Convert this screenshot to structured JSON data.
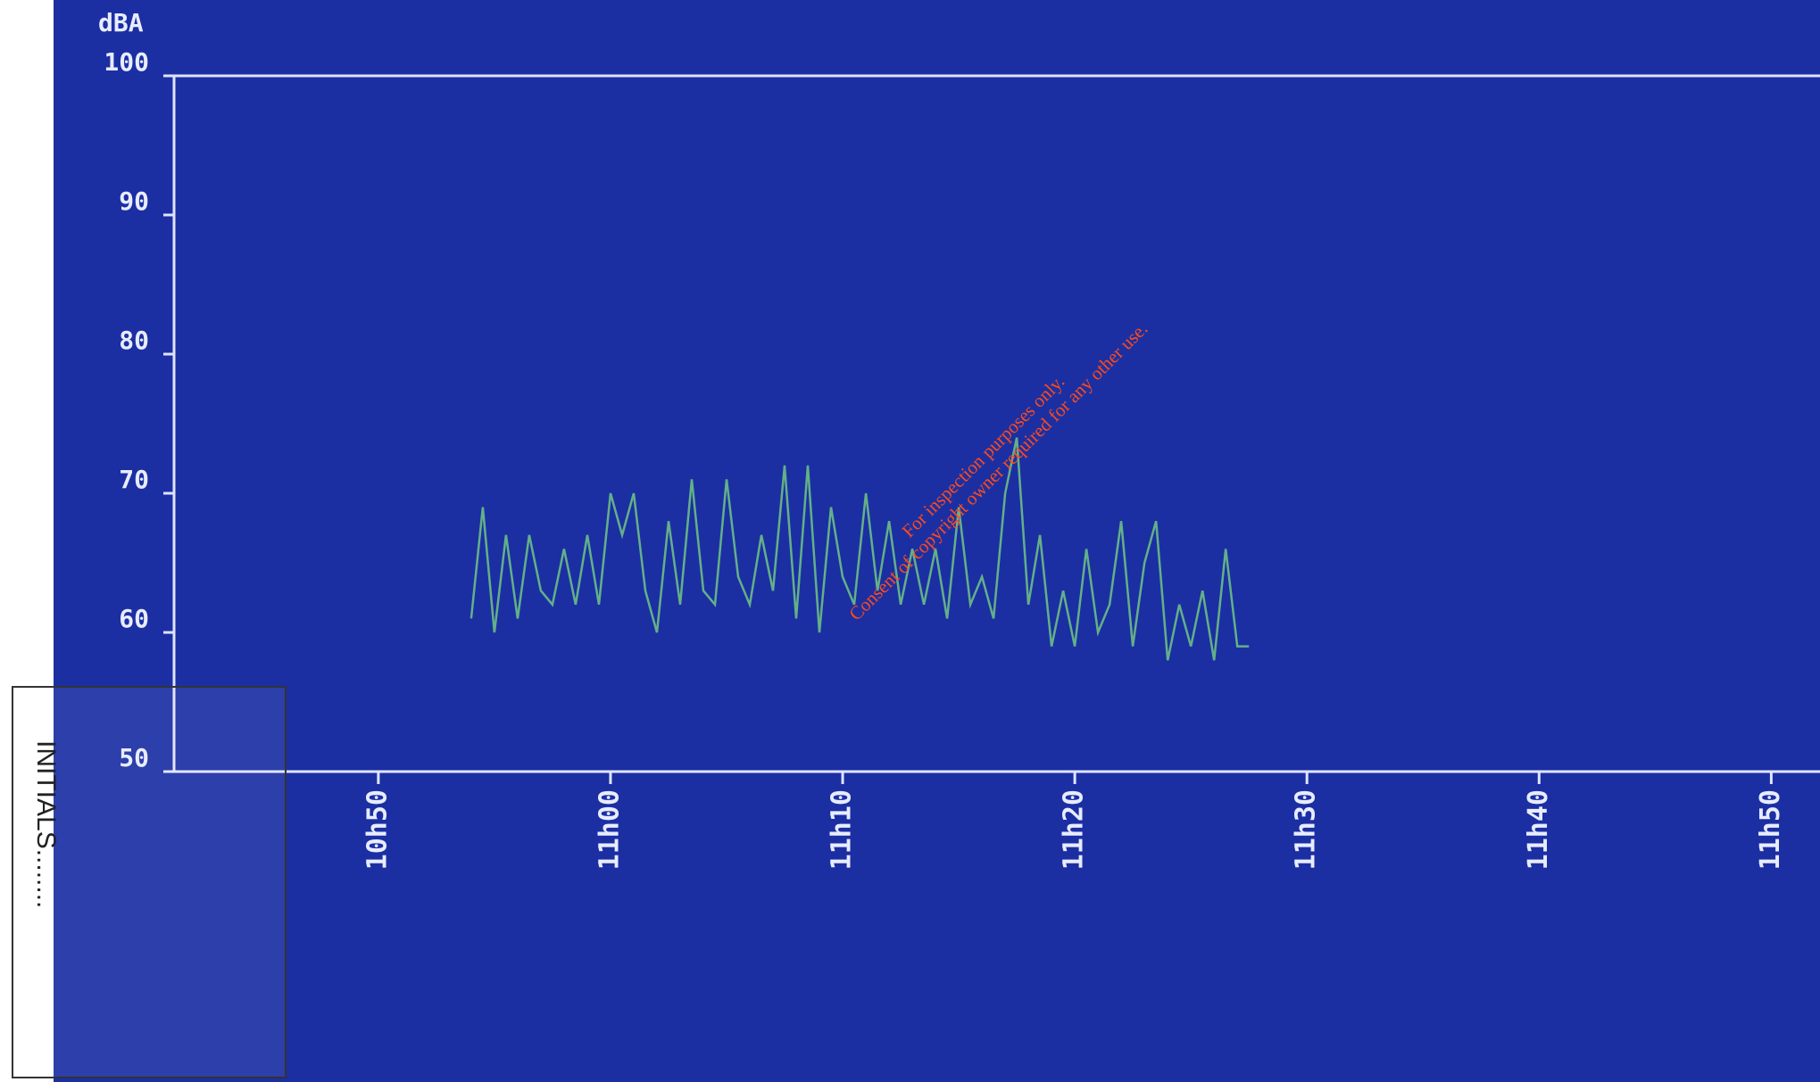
{
  "chart_data": {
    "type": "line",
    "y_label": "dBA",
    "x": [
      654.0,
      654.5,
      655.0,
      655.5,
      656.0,
      656.5,
      657.0,
      657.5,
      658.0,
      658.5,
      659.0,
      659.5,
      660.0,
      660.5,
      661.0,
      661.5,
      662.0,
      662.5,
      663.0,
      663.5,
      664.0,
      664.5,
      665.0,
      665.5,
      666.0,
      666.5,
      667.0,
      667.5,
      668.0,
      668.5,
      669.0,
      669.5,
      670.0,
      670.5,
      671.0,
      671.5,
      672.0,
      672.5,
      673.0,
      673.5,
      674.0,
      674.5,
      675.0,
      675.5,
      676.0,
      676.5,
      677.0,
      677.5,
      678.0,
      678.5,
      679.0,
      679.5,
      680.0,
      680.5,
      681.0,
      681.5,
      682.0,
      682.5,
      683.0,
      683.5,
      684.0,
      684.5,
      685.0,
      685.5,
      686.0,
      686.5,
      687.0,
      687.5
    ],
    "values": [
      61,
      69,
      60,
      67,
      61,
      67,
      63,
      62,
      66,
      62,
      67,
      62,
      70,
      67,
      70,
      63,
      60,
      68,
      62,
      71,
      63,
      62,
      71,
      64,
      62,
      67,
      63,
      72,
      61,
      72,
      60,
      69,
      64,
      62,
      70,
      63,
      68,
      62,
      66,
      62,
      66,
      61,
      69,
      62,
      64,
      61,
      70,
      74,
      62,
      67,
      59,
      63,
      59,
      66,
      60,
      62,
      68,
      59,
      65,
      68,
      58,
      62,
      59,
      63,
      58,
      66,
      59,
      59
    ],
    "color": "#63b088",
    "xlim": [
      641.2,
      712.1
    ],
    "xticks": [
      {
        "value": 650,
        "label": "10h50"
      },
      {
        "value": 660,
        "label": "11h00"
      },
      {
        "value": 670,
        "label": "11h10"
      },
      {
        "value": 680,
        "label": "11h20"
      },
      {
        "value": 690,
        "label": "11h30"
      },
      {
        "value": 700,
        "label": "11h40"
      },
      {
        "value": 710,
        "label": "11h50"
      }
    ],
    "ylim": [
      50,
      100
    ],
    "yticks": [
      50,
      60,
      70,
      80,
      90,
      100
    ]
  },
  "watermark": [
    "For inspection purposes only.",
    "Consent of copyright owner required for any other use."
  ],
  "stamp": "INITIALS........"
}
